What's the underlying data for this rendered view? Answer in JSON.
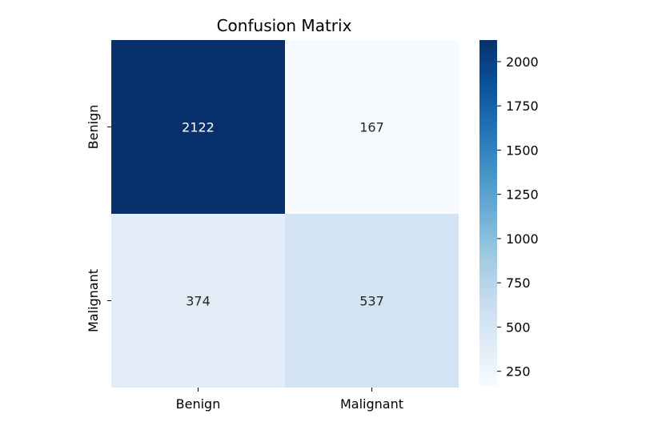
{
  "chart_data": {
    "type": "heatmap",
    "title": "Confusion Matrix",
    "xlabel": "",
    "ylabel": "",
    "x_categories": [
      "Benign",
      "Malignant"
    ],
    "y_categories": [
      "Benign",
      "Malignant"
    ],
    "values": [
      [
        2122,
        167
      ],
      [
        374,
        537
      ]
    ],
    "colormap": "Blues",
    "colorbar": {
      "ticks": [
        2000,
        1750,
        1500,
        1250,
        1000,
        750,
        500,
        250
      ],
      "range": [
        167,
        2122
      ]
    },
    "colors": {
      "dark_cell": "#08306b",
      "light_cell": "#f7fbff",
      "mid_cell_374": "#dce9f6",
      "mid_cell_537": "#cfe1f2"
    },
    "grid": false
  }
}
